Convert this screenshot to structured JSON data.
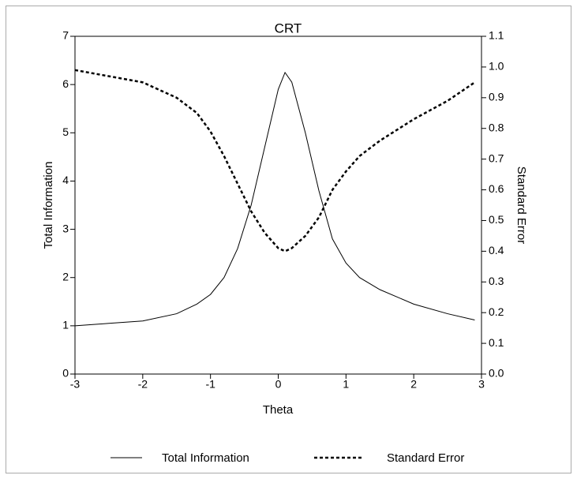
{
  "chart_data": {
    "type": "line",
    "title": "CRT",
    "x_label": "Theta",
    "y_label": "Total Information",
    "y2_label": "Standard Error",
    "x": [
      -3,
      -2.5,
      -2,
      -1.5,
      -1.2,
      -1,
      -0.8,
      -0.6,
      -0.4,
      -0.2,
      0,
      0.1,
      0.2,
      0.4,
      0.6,
      0.8,
      1,
      1.2,
      1.5,
      2,
      2.5,
      2.9
    ],
    "series": [
      {
        "name": "Total Information",
        "color": "#000000",
        "dash": false,
        "values": [
          1.0,
          1.05,
          1.1,
          1.25,
          1.45,
          1.65,
          2.0,
          2.6,
          3.5,
          4.7,
          5.9,
          6.25,
          6.05,
          5.0,
          3.8,
          2.8,
          2.3,
          2.0,
          1.75,
          1.45,
          1.25,
          1.12
        ]
      },
      {
        "name": "Standard Error",
        "color": "#000000",
        "dash": true,
        "axis": "y2",
        "values": [
          0.99,
          0.97,
          0.95,
          0.9,
          0.85,
          0.79,
          0.71,
          0.62,
          0.53,
          0.46,
          0.41,
          0.4,
          0.41,
          0.45,
          0.51,
          0.6,
          0.66,
          0.71,
          0.76,
          0.83,
          0.89,
          0.95
        ]
      }
    ],
    "xlim": [
      -3,
      3
    ],
    "xticks": [
      -3,
      -2,
      -1,
      0,
      1,
      2,
      3
    ],
    "ylim": [
      0,
      7
    ],
    "yticks": [
      0,
      1,
      2,
      3,
      4,
      5,
      6,
      7
    ],
    "y2lim": [
      0,
      1.1
    ],
    "y2ticks": [
      {
        "value": 0,
        "label": "0.0"
      },
      0.1,
      0.2,
      0.3,
      0.4,
      0.5,
      0.6,
      0.7,
      0.8,
      0.9,
      {
        "value": 1,
        "label": "1.0"
      },
      1.1
    ],
    "grid": false
  }
}
